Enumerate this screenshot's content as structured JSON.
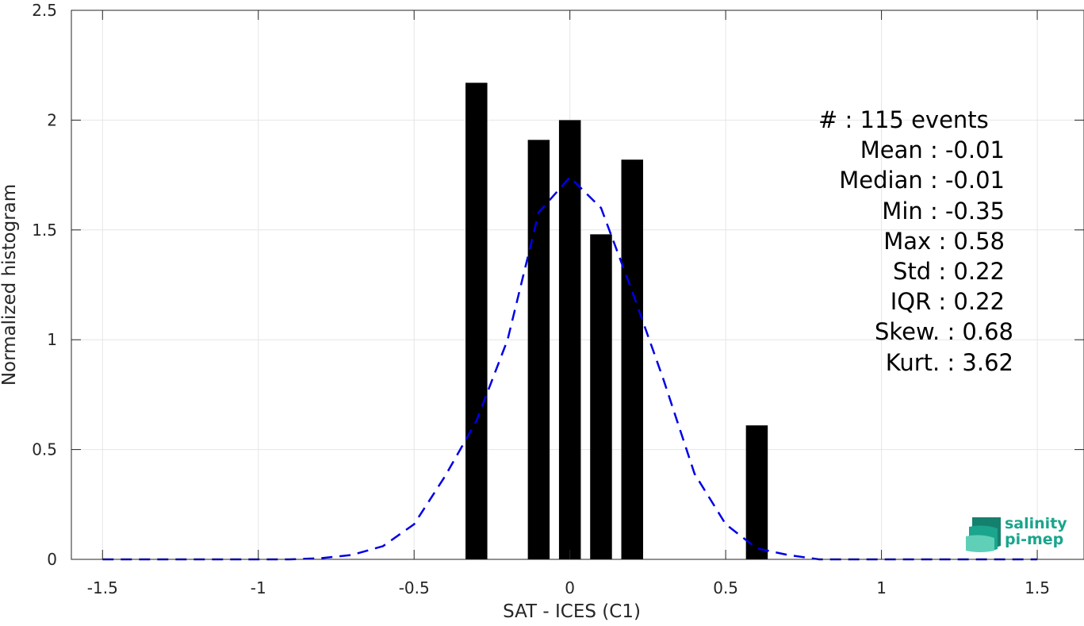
{
  "chart_data": {
    "type": "bar",
    "title": "",
    "xlabel": "SAT - ICES (C1)",
    "ylabel": "Normalized histogram",
    "xlim": [
      -1.6,
      1.65
    ],
    "ylim": [
      0,
      2.5
    ],
    "x_ticks": [
      "-1.5",
      "-1",
      "-0.5",
      "0",
      "0.5",
      "1",
      "1.5"
    ],
    "y_ticks": [
      "0",
      "0.5",
      "1",
      "1.5",
      "2",
      "2.5"
    ],
    "grid": true,
    "bars": {
      "centers": [
        -0.3,
        -0.1,
        0.0,
        0.1,
        0.2,
        0.6
      ],
      "values": [
        2.17,
        1.91,
        2.0,
        1.48,
        1.82,
        0.61
      ],
      "width": 0.07,
      "color": "#000000"
    },
    "series": [
      {
        "style": "dashed",
        "color": "#0000e6",
        "x": [
          -1.5,
          -1.4,
          -1.3,
          -1.2,
          -1.1,
          -1.0,
          -0.9,
          -0.8,
          -0.7,
          -0.6,
          -0.5,
          -0.4,
          -0.3,
          -0.2,
          -0.1,
          0.0,
          0.1,
          0.2,
          0.3,
          0.4,
          0.5,
          0.6,
          0.7,
          0.8,
          0.9,
          1.0,
          1.1,
          1.2,
          1.3,
          1.4,
          1.5
        ],
        "values": [
          0,
          0,
          0,
          0,
          0,
          0,
          0,
          0.005,
          0.02,
          0.06,
          0.16,
          0.38,
          0.63,
          1.0,
          1.58,
          1.74,
          1.6,
          1.22,
          0.82,
          0.39,
          0.16,
          0.05,
          0.02,
          0,
          0,
          0,
          0,
          0,
          0,
          0,
          0
        ]
      }
    ]
  },
  "stats": [
    {
      "label": "#  : 115 events"
    },
    {
      "label": "Mean : -0.01"
    },
    {
      "label": "Median : -0.01"
    },
    {
      "label": "Min : -0.35"
    },
    {
      "label": "Max : 0.58"
    },
    {
      "label": "Std : 0.22"
    },
    {
      "label": "IQR : 0.22"
    },
    {
      "label": "Skew. : 0.68"
    },
    {
      "label": "Kurt. : 3.62"
    }
  ],
  "logo": {
    "line1": "salinity",
    "line2": "pi-mep",
    "color": "#1aa58c"
  }
}
